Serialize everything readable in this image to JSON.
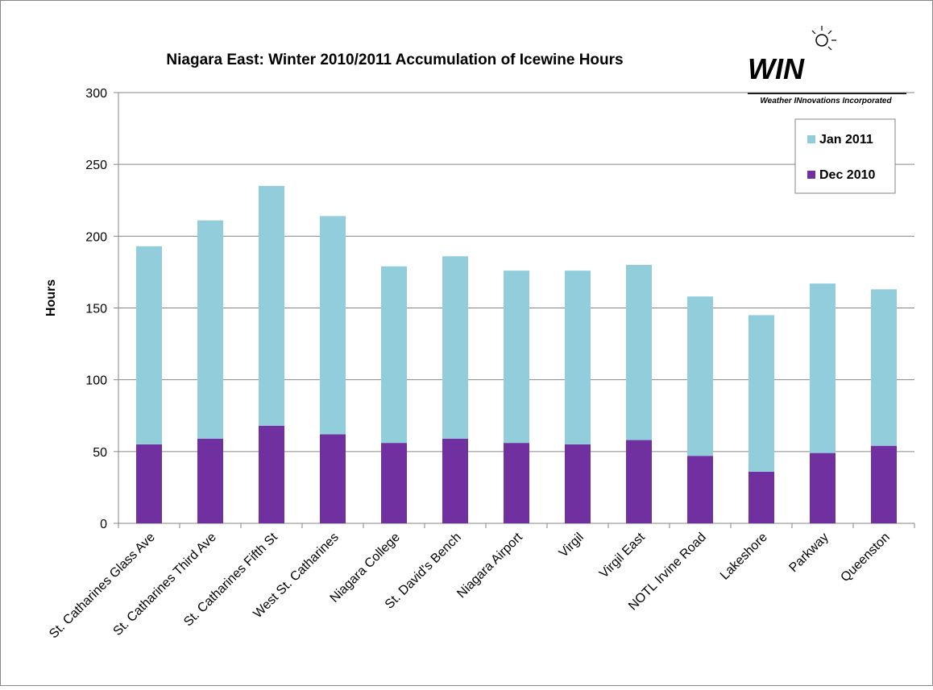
{
  "chart_data": {
    "type": "stacked_bar",
    "title": "Niagara East: Winter 2010/2011 Accumulation of Icewine Hours",
    "logo": {
      "text": "WIN",
      "subtitle": "Weather INnovations Incorporated"
    },
    "y_label": "Hours",
    "categories": [
      "St. Catharines Glass Ave",
      "St. Catharines Third Ave",
      "St. Catharines Fifth St",
      "West St. Catharines",
      "Niagara College",
      "St. David's Bench",
      "Niagara Airport",
      "Virgil",
      "Virgil East",
      "NOTL Irvine Road",
      "Lakeshore",
      "Parkway",
      "Queenston"
    ],
    "series": [
      {
        "name": "Dec 2010",
        "color": "#7030a0",
        "values": [
          55,
          59,
          68,
          62,
          56,
          59,
          56,
          55,
          58,
          47,
          36,
          49,
          54
        ]
      },
      {
        "name": "Jan 2011",
        "color": "#92cddc",
        "values": [
          138,
          152,
          167,
          152,
          123,
          127,
          120,
          121,
          122,
          111,
          109,
          118,
          109
        ]
      }
    ],
    "ylim": [
      0,
      300
    ],
    "yticks": [
      0,
      50,
      100,
      150,
      200,
      250,
      300
    ],
    "grid": true,
    "legend": "upper right"
  }
}
